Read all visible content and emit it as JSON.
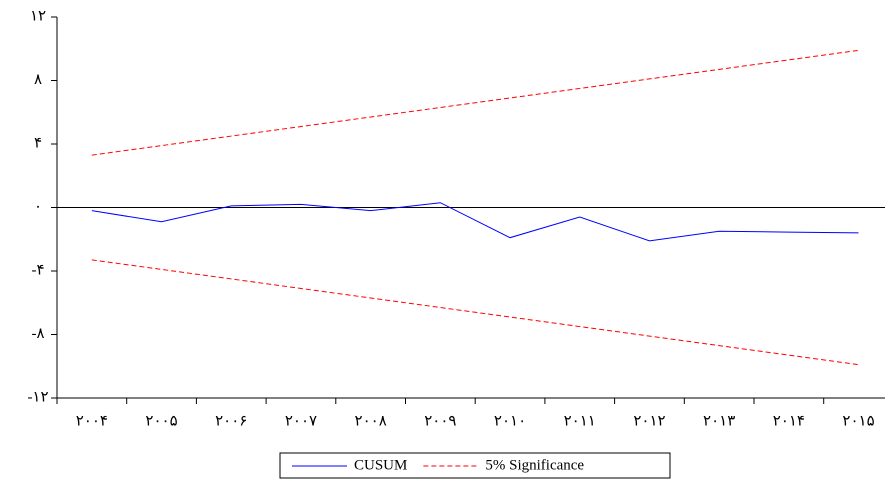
{
  "chart_data": {
    "type": "line",
    "categories": [
      "۲۰۰۴",
      "۲۰۰۵",
      "۲۰۰۶",
      "۲۰۰۷",
      "۲۰۰۸",
      "۲۰۰۹",
      "۲۰۱۰",
      "۲۰۱۱",
      "۲۰۱۲",
      "۲۰۱۳",
      "۲۰۱۴",
      "۲۰۱۵"
    ],
    "series": [
      {
        "name": "CUSUM",
        "color": "#0000ff",
        "dash": false,
        "values": [
          -0.2,
          -0.9,
          0.1,
          0.2,
          -0.2,
          0.3,
          -1.9,
          -0.6,
          -2.1,
          -1.5,
          -1.55,
          -1.6
        ]
      },
      {
        "name": "5% Significance",
        "color": "#ff0000",
        "dash": true,
        "values": [
          3.3,
          3.9,
          4.5,
          5.1,
          5.7,
          6.3,
          6.9,
          7.5,
          8.1,
          8.7,
          9.3,
          9.9
        ]
      },
      {
        "color": "#ff0000",
        "dash": true,
        "values": [
          -3.3,
          -3.9,
          -4.5,
          -5.1,
          -5.7,
          -6.3,
          -6.9,
          -7.5,
          -8.1,
          -8.7,
          -9.3,
          -9.9
        ]
      }
    ],
    "ylim": [
      -12,
      12
    ],
    "yticks": [
      {
        "value": -12,
        "label": "-۱۲"
      },
      {
        "value": -8,
        "label": "-۸"
      },
      {
        "value": -4,
        "label": "-۴"
      },
      {
        "value": 0,
        "label": "۰"
      },
      {
        "value": 4,
        "label": "۴"
      },
      {
        "value": 8,
        "label": "۸"
      },
      {
        "value": 12,
        "label": "۱۲"
      }
    ],
    "zero_line": true
  }
}
